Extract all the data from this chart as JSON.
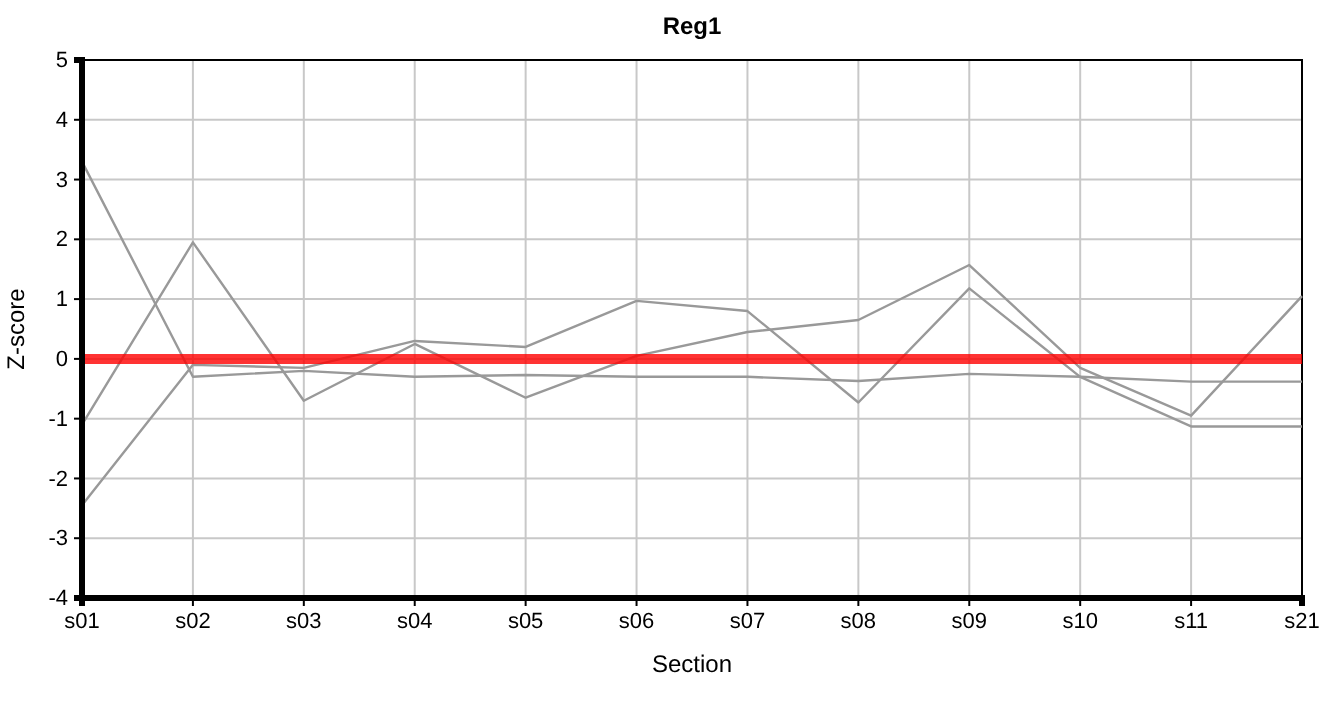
{
  "chart_data": {
    "type": "line",
    "title": "Reg1",
    "xlabel": "Section",
    "ylabel": "Z-score",
    "categories": [
      "s01",
      "s02",
      "s03",
      "s04",
      "s05",
      "s06",
      "s07",
      "s08",
      "s09",
      "s10",
      "s11",
      "s21"
    ],
    "series": [
      {
        "color": "#999999",
        "values": [
          -1.1,
          1.95,
          -0.7,
          0.25,
          -0.65,
          0.05,
          0.45,
          0.65,
          1.57,
          -0.15,
          -0.95,
          1.05
        ]
      },
      {
        "color": "#999999",
        "values": [
          -2.45,
          -0.1,
          -0.15,
          0.3,
          0.2,
          0.97,
          0.8,
          -0.73,
          1.18,
          -0.3,
          -1.13,
          -1.13
        ]
      },
      {
        "color": "#999999",
        "values": [
          3.3,
          -0.3,
          -0.2,
          -0.3,
          -0.27,
          -0.3,
          -0.3,
          -0.37,
          -0.25,
          -0.3,
          -0.38,
          -0.38
        ]
      }
    ],
    "ylim": [
      -4,
      5
    ],
    "yticks": [
      -4,
      -3,
      -2,
      -1,
      0,
      1,
      2,
      3,
      4,
      5
    ],
    "grid": true,
    "marker": "none",
    "line_style": "solid",
    "ref_lines": [
      {
        "axis": "y",
        "value": 0,
        "color": "#ff0000"
      }
    ]
  }
}
